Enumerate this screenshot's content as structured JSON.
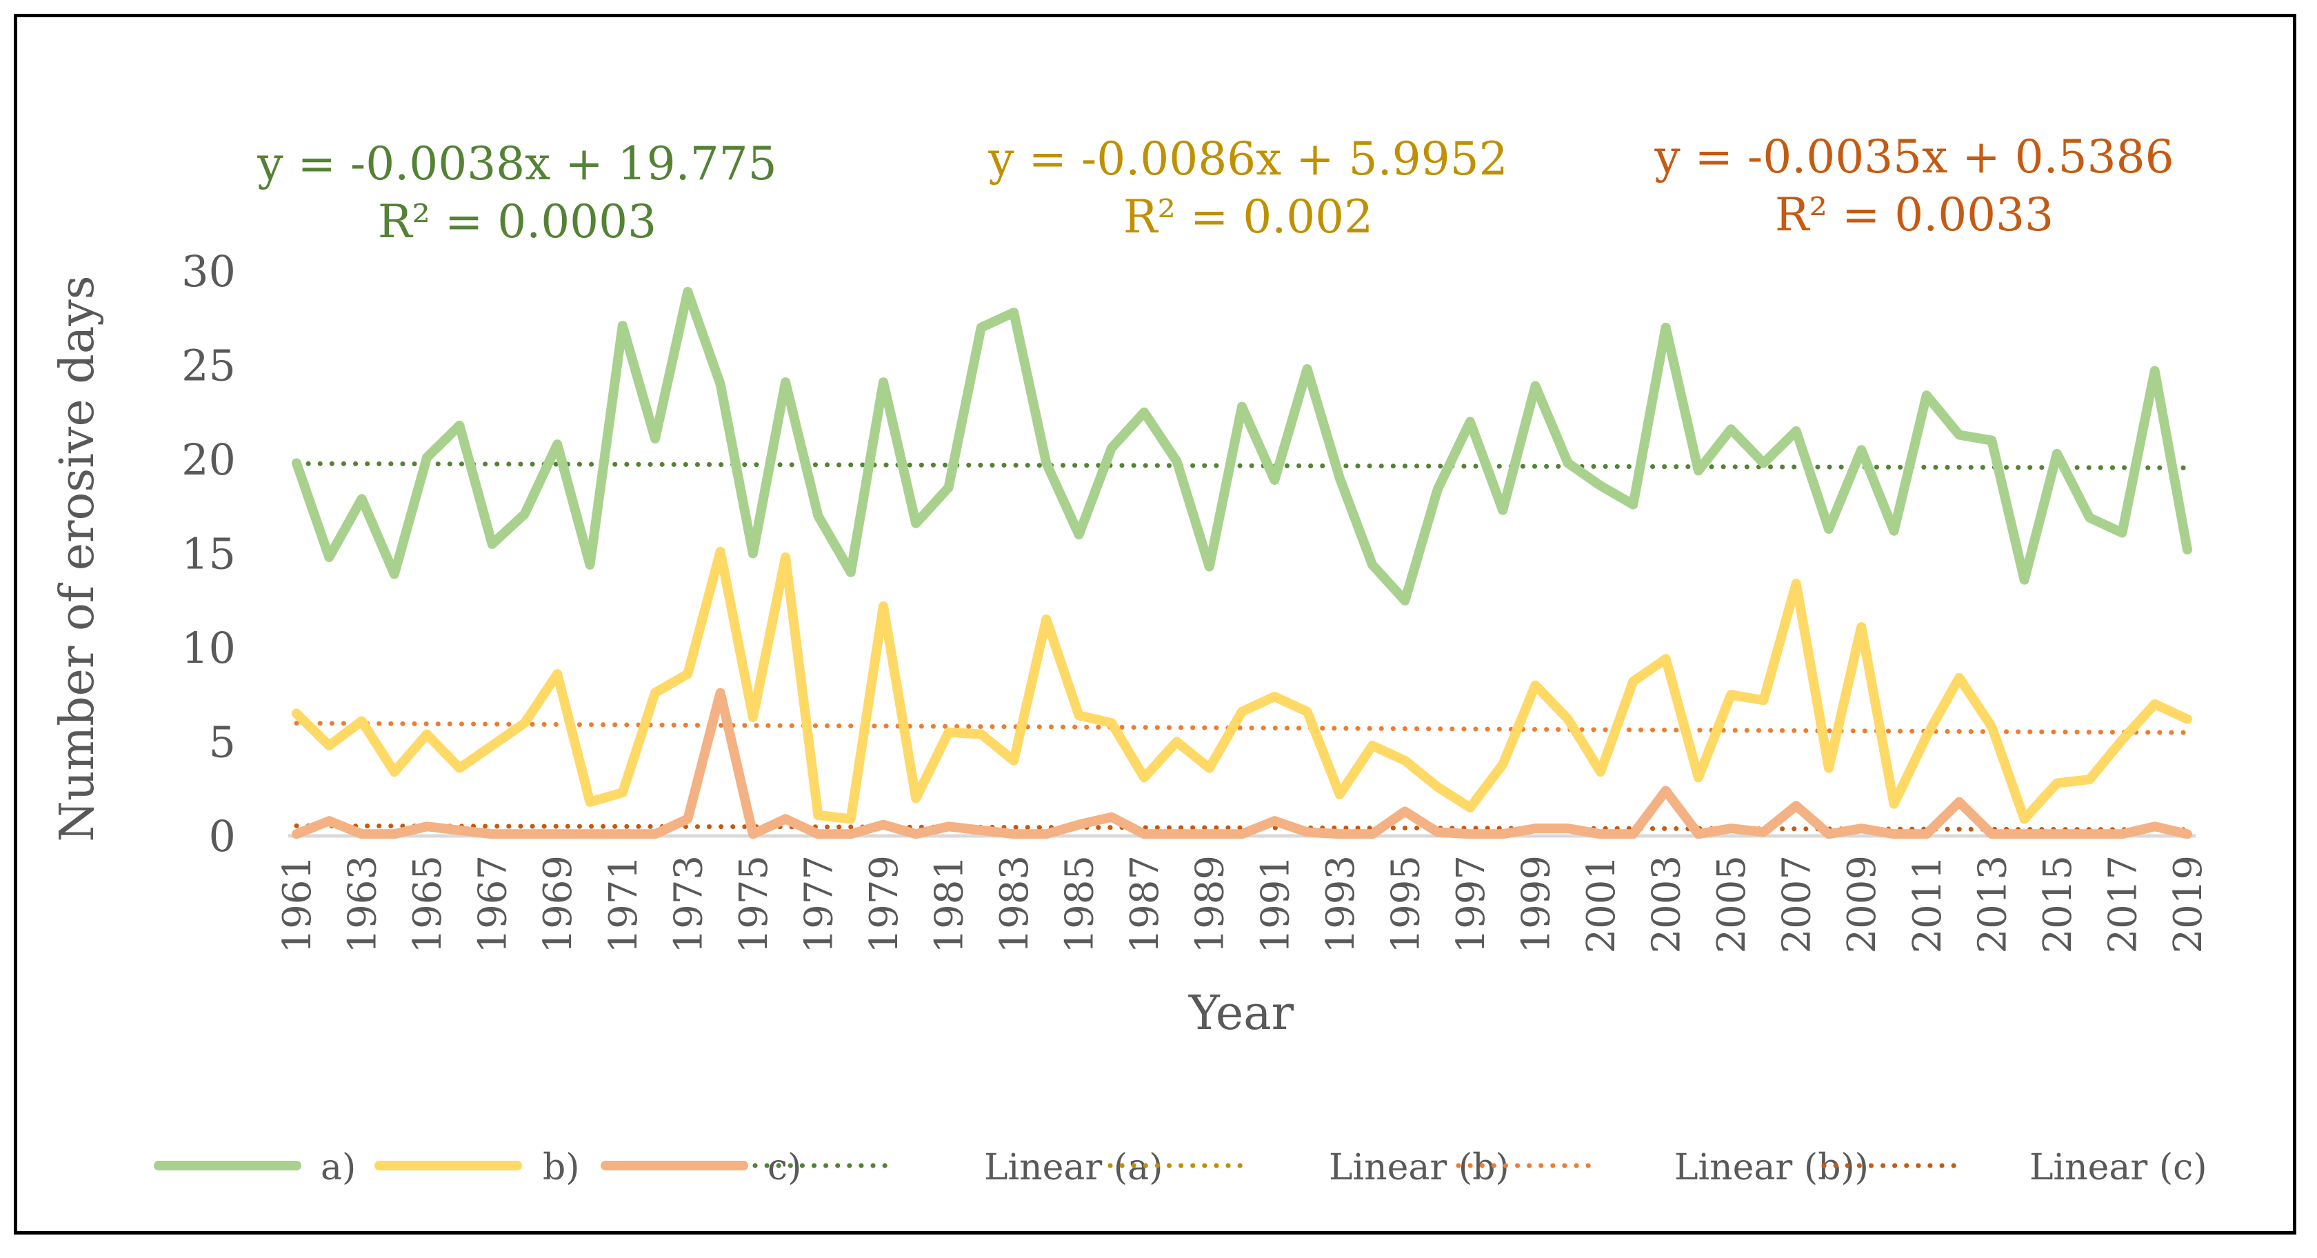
{
  "chart_data": {
    "type": "line",
    "title": "",
    "xlabel": "Year",
    "ylabel": "Number of erosive days",
    "ylim": [
      0,
      30
    ],
    "yticks": [
      0,
      5,
      10,
      15,
      20,
      25,
      30
    ],
    "x": [
      1961,
      1962,
      1963,
      1964,
      1965,
      1966,
      1967,
      1968,
      1969,
      1970,
      1971,
      1972,
      1973,
      1974,
      1975,
      1976,
      1977,
      1978,
      1979,
      1980,
      1981,
      1982,
      1983,
      1984,
      1985,
      1986,
      1987,
      1988,
      1989,
      1990,
      1991,
      1992,
      1993,
      1994,
      1995,
      1996,
      1997,
      1998,
      1999,
      2000,
      2001,
      2002,
      2003,
      2004,
      2005,
      2006,
      2007,
      2008,
      2009,
      2010,
      2011,
      2012,
      2013,
      2014,
      2015,
      2016,
      2017,
      2018,
      2019
    ],
    "xtick_labels": [
      "1961",
      "1963",
      "1965",
      "1967",
      "1969",
      "1971",
      "1973",
      "1975",
      "1977",
      "1979",
      "1981",
      "1983",
      "1985",
      "1987",
      "1989",
      "1991",
      "1993",
      "1995",
      "1997",
      "1999",
      "2001",
      "2003",
      "2005",
      "2007",
      "2009",
      "2011",
      "2013",
      "2015",
      "2017",
      "2019"
    ],
    "series": [
      {
        "name": "a)",
        "color": "#a9d18e",
        "values": [
          19.8,
          14.8,
          17.9,
          13.9,
          20.1,
          21.8,
          15.5,
          17.1,
          20.8,
          14.4,
          27.1,
          21.1,
          28.9,
          24.0,
          15.0,
          24.1,
          17.0,
          14.0,
          24.1,
          16.6,
          18.5,
          27.0,
          27.8,
          19.8,
          16.0,
          20.6,
          22.5,
          19.9,
          14.3,
          22.8,
          18.9,
          24.8,
          19.0,
          14.4,
          12.5,
          18.4,
          22.0,
          17.3,
          23.9,
          19.8,
          18.6,
          17.6,
          27.0,
          19.4,
          21.6,
          19.8,
          21.5,
          16.3,
          20.5,
          16.2,
          23.4,
          21.3,
          21.0,
          13.6,
          20.3,
          16.9,
          16.1,
          24.7,
          15.2
        ]
      },
      {
        "name": "b)",
        "color": "#ffd966",
        "values": [
          6.5,
          4.8,
          6.1,
          3.4,
          5.4,
          3.6,
          4.8,
          6.0,
          8.6,
          1.8,
          2.3,
          7.6,
          8.6,
          15.1,
          6.3,
          14.8,
          1.1,
          0.9,
          12.2,
          2.0,
          5.5,
          5.4,
          4.0,
          11.5,
          6.4,
          6.0,
          3.1,
          5.0,
          3.6,
          6.6,
          7.4,
          6.6,
          2.2,
          4.8,
          4.0,
          2.6,
          1.5,
          3.8,
          8.0,
          6.2,
          3.4,
          8.2,
          9.4,
          3.1,
          7.5,
          7.2,
          13.4,
          3.6,
          11.1,
          1.7,
          5.3,
          8.4,
          5.8,
          0.9,
          2.8,
          3.0,
          5.1,
          7.0,
          6.2
        ]
      },
      {
        "name": "c)",
        "color": "#f4b183",
        "values": [
          0.1,
          0.8,
          0.1,
          0.1,
          0.5,
          0.3,
          0.1,
          0.1,
          0.1,
          0.1,
          0.1,
          0.1,
          0.9,
          7.6,
          0.1,
          0.9,
          0.1,
          0.1,
          0.6,
          0.1,
          0.5,
          0.3,
          0.1,
          0.1,
          0.6,
          1.0,
          0.1,
          0.1,
          0.1,
          0.1,
          0.8,
          0.2,
          0.1,
          0.1,
          1.3,
          0.2,
          0.1,
          0.1,
          0.4,
          0.4,
          0.1,
          0.1,
          2.4,
          0.1,
          0.4,
          0.2,
          1.6,
          0.1,
          0.4,
          0.1,
          0.1,
          1.8,
          0.1,
          0.1,
          0.1,
          0.1,
          0.1,
          0.5,
          0.1
        ]
      }
    ],
    "trendlines": [
      {
        "name": "Linear (a)",
        "color": "#548235",
        "slope": -0.0038,
        "intercept": 19.775,
        "equation": "y = -0.0038x + 19.775",
        "r2": "R² = 0.0003"
      },
      {
        "name": "Linear (b)",
        "color": "#bf9000",
        "slope": -0.0086,
        "intercept": 5.9952,
        "equation": "y = -0.0086x + 5.9952",
        "r2": "R² = 0.002"
      },
      {
        "name": "Linear (b))",
        "color": "#ed7d31",
        "slope": -0.0086,
        "intercept": 5.9952
      },
      {
        "name": "Linear (c)",
        "color": "#c55a11",
        "slope": -0.0035,
        "intercept": 0.5386,
        "equation": "y = -0.0035x + 0.5386",
        "r2": "R² = 0.0033"
      }
    ],
    "legend": [
      "a)",
      "b)",
      "c)",
      "Linear (a)",
      "Linear (b)",
      "Linear (b))",
      "Linear (c)"
    ],
    "legend_position": "bottom",
    "grid": false
  }
}
